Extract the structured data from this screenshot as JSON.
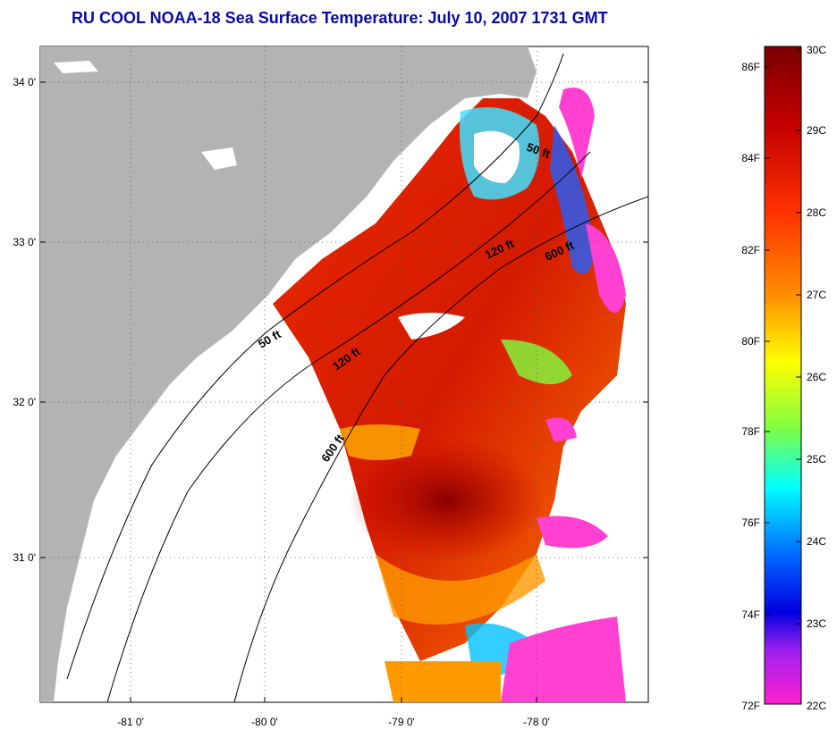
{
  "title": "RU COOL  NOAA-18  Sea Surface Temperature:  July 10, 2007 1731 GMT",
  "map": {
    "x_ticks": [
      "-81 0'",
      "-80 0'",
      "-79 0'",
      "-78 0'"
    ],
    "y_ticks": [
      "34 0'",
      "33 0'",
      "32 0'",
      "31 0'"
    ],
    "contour_labels": [
      "50 ft",
      "120 ft",
      "600 ft",
      "50 ft",
      "120 ft",
      "600 ft"
    ],
    "land_color": "#b3b3b3",
    "nodata_color": "#ffffff"
  },
  "colorbar": {
    "fahrenheit_labels": [
      "86F",
      "84F",
      "82F",
      "80F",
      "78F",
      "76F",
      "74F",
      "72F"
    ],
    "celsius_labels": [
      "30C",
      "29C",
      "28C",
      "27C",
      "26C",
      "25C",
      "24C",
      "23C",
      "22C"
    ],
    "range_c": [
      22,
      30
    ]
  }
}
